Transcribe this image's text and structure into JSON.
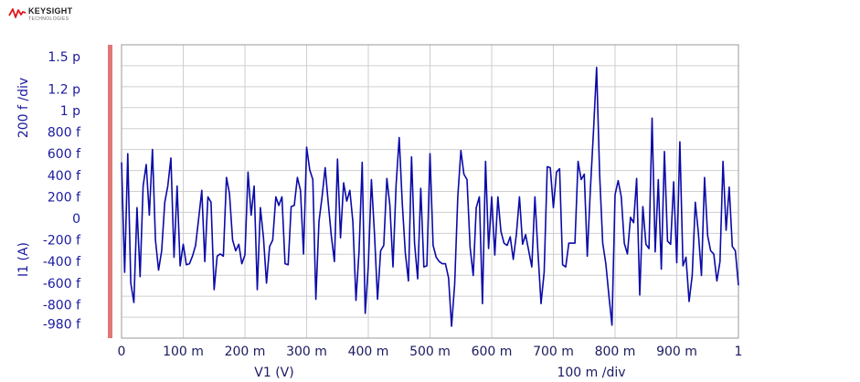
{
  "brand": {
    "name": "KEYSIGHT",
    "subtitle": "TECHNOLOGIES",
    "accent_color": "#e0161e"
  },
  "chart_data": {
    "type": "line",
    "title": "",
    "xlabel": "V1 (V)",
    "x_scale_label": "100 m /div",
    "ylabel": "I1 (A)",
    "y_scale_label": "200 f /div",
    "xlim": [
      0,
      1
    ],
    "ylim": [
      -1e-12,
      1.5e-12
    ],
    "grid": true,
    "line_color": "#0a0aa8",
    "marker_color": "#e07878",
    "x_ticks": [
      {
        "value": 0,
        "label": "0"
      },
      {
        "value": 0.1,
        "label": "100 m"
      },
      {
        "value": 0.2,
        "label": "200 m"
      },
      {
        "value": 0.3,
        "label": "300 m"
      },
      {
        "value": 0.4,
        "label": "400 m"
      },
      {
        "value": 0.5,
        "label": "500 m"
      },
      {
        "value": 0.6,
        "label": "600 m"
      },
      {
        "value": 0.7,
        "label": "700 m"
      },
      {
        "value": 0.8,
        "label": "800 m"
      },
      {
        "value": 0.9,
        "label": "900 m"
      },
      {
        "value": 1.0,
        "label": "1"
      }
    ],
    "y_ticks": [
      {
        "value": 1.5e-12,
        "label": "1.5 p"
      },
      {
        "value": 1.2e-12,
        "label": "1.2 p"
      },
      {
        "value": 1e-12,
        "label": "1 p"
      },
      {
        "value": 8e-13,
        "label": "800 f"
      },
      {
        "value": 6e-13,
        "label": "600 f"
      },
      {
        "value": 4e-13,
        "label": "400 f"
      },
      {
        "value": 2e-13,
        "label": "200 f"
      },
      {
        "value": 0,
        "label": "0"
      },
      {
        "value": -2e-13,
        "label": "-200 f"
      },
      {
        "value": -4e-13,
        "label": "-400 f"
      },
      {
        "value": -6e-13,
        "label": "-600 f"
      },
      {
        "value": -8e-13,
        "label": "-800 f"
      },
      {
        "value": -9.8e-13,
        "label": "-980 f"
      }
    ],
    "series": [
      {
        "x": [
          0,
          0.005,
          0.01,
          0.015,
          0.02,
          0.025,
          0.03,
          0.035,
          0.04,
          0.045,
          0.05,
          0.055,
          0.06,
          0.065,
          0.07,
          0.075,
          0.08,
          0.085,
          0.09,
          0.095,
          0.1,
          0.105,
          0.11,
          0.115,
          0.12,
          0.125,
          0.13,
          0.135,
          0.14,
          0.145,
          0.15,
          0.155,
          0.16,
          0.165,
          0.17,
          0.175,
          0.18,
          0.185,
          0.19,
          0.195,
          0.2,
          0.205,
          0.21,
          0.215,
          0.22,
          0.225,
          0.23,
          0.235,
          0.24,
          0.245,
          0.25,
          0.255,
          0.26,
          0.265,
          0.27,
          0.275,
          0.28,
          0.285,
          0.29,
          0.295,
          0.3,
          0.305,
          0.31,
          0.315,
          0.32,
          0.325,
          0.33,
          0.335,
          0.34,
          0.345,
          0.35,
          0.355,
          0.36,
          0.365,
          0.37,
          0.375,
          0.38,
          0.385,
          0.39,
          0.395,
          0.4,
          0.405,
          0.41,
          0.415,
          0.42,
          0.425,
          0.43,
          0.435,
          0.44,
          0.445,
          0.45,
          0.455,
          0.46,
          0.465,
          0.47,
          0.475,
          0.48,
          0.485,
          0.49,
          0.495,
          0.5,
          0.505,
          0.51,
          0.515,
          0.52,
          0.525,
          0.53,
          0.535,
          0.54,
          0.545,
          0.55,
          0.555,
          0.56,
          0.565,
          0.57,
          0.575,
          0.58,
          0.585,
          0.59,
          0.595,
          0.6,
          0.605,
          0.61,
          0.615,
          0.62,
          0.625,
          0.63,
          0.635,
          0.64,
          0.645,
          0.65,
          0.655,
          0.66,
          0.665,
          0.67,
          0.675,
          0.68,
          0.685,
          0.69,
          0.695,
          0.7,
          0.705,
          0.71,
          0.715,
          0.72,
          0.725,
          0.73,
          0.735,
          0.74,
          0.745,
          0.75,
          0.755,
          0.76,
          0.765,
          0.77,
          0.775,
          0.78,
          0.785,
          0.79,
          0.795,
          0.8,
          0.805,
          0.81,
          0.815,
          0.82,
          0.825,
          0.83,
          0.835,
          0.84,
          0.845,
          0.85,
          0.855,
          0.86,
          0.865,
          0.87,
          0.875,
          0.88,
          0.885,
          0.89,
          0.895,
          0.9,
          0.905,
          0.91,
          0.915,
          0.92,
          0.925,
          0.93,
          0.935,
          0.94,
          0.945,
          0.95,
          0.955,
          0.96,
          0.965,
          0.97,
          0.975,
          0.98,
          0.985,
          0.99,
          0.995,
          1.0
        ],
        "y": [
          5.2e-13,
          -5e-13,
          6e-13,
          -6e-13,
          -7.8e-13,
          1e-13,
          -5.4e-13,
          3e-13,
          5e-13,
          3e-14,
          6.4e-13,
          -2e-13,
          -4.8e-13,
          -3e-13,
          1.5e-13,
          3e-13,
          5.6e-13,
          -3.6e-13,
          3e-13,
          -4.4e-13,
          -2.4e-13,
          -4.3e-13,
          -4.2e-13,
          -3.5e-13,
          -2.5e-13,
          0.0,
          2.6e-13,
          -4e-13,
          2e-13,
          1.5e-13,
          -6.6e-13,
          -3.5e-13,
          -3.3e-13,
          -3.5e-13,
          3.8e-13,
          2.3e-13,
          -2e-13,
          -3e-13,
          -2.4e-13,
          -4.2e-13,
          -3.4e-13,
          4.3e-13,
          3e-14,
          3e-13,
          -6.6e-13,
          1e-13,
          -1.8e-13,
          -6e-13,
          -2.6e-13,
          -2e-13,
          2e-13,
          1.2e-13,
          2e-13,
          -4.2e-13,
          -4.3e-13,
          1.1e-13,
          1.2e-13,
          3.8e-13,
          2.6e-13,
          -3.3e-13,
          6.6e-13,
          4.5e-13,
          3.6e-13,
          -7.5e-13,
          -3e-14,
          2e-13,
          4.7e-13,
          1.5e-13,
          -1.6e-13,
          -4e-13,
          5.5e-13,
          -1.8e-13,
          3.3e-13,
          1.6e-13,
          2.6e-13,
          -3e-14,
          -7.6e-13,
          -3e-13,
          5.2e-13,
          -8.8e-13,
          -4.4e-13,
          3.6e-13,
          -1.5e-13,
          -7.5e-13,
          -3e-13,
          -2.5e-13,
          3.7e-13,
          1.2e-13,
          -4.5e-13,
          3.1e-13,
          7.5e-13,
          1.5e-13,
          -3.2e-13,
          -5.8e-13,
          5.7e-13,
          -2.3e-13,
          -5.6e-13,
          2.8e-13,
          -4.5e-13,
          -4.4e-13,
          6e-13,
          -2.5e-13,
          -3.6e-13,
          -4e-13,
          -4.2e-13,
          -4.2e-13,
          -5.5e-13,
          -1e-12,
          -6.1e-13,
          2e-13,
          6.3e-13,
          4.1e-13,
          3.6e-13,
          -2.7e-13,
          -5.3e-13,
          1e-13,
          2e-13,
          -7.9e-13,
          5.3e-13,
          -2.8e-13,
          2e-13,
          -3.4e-13,
          2e-13,
          -1.2e-13,
          -2.3e-13,
          -2.5e-13,
          -1.7e-13,
          -3.8e-13,
          -1.5e-13,
          2e-13,
          -2.4e-13,
          -1.5e-13,
          -3e-13,
          -4.5e-13,
          2e-13,
          -3.1e-13,
          -7.9e-13,
          -5e-13,
          4.8e-13,
          4.7e-13,
          1e-13,
          4.3e-13,
          4.6e-13,
          -4.3e-13,
          -4.5e-13,
          -2.3e-13,
          -2.3e-13,
          -2.3e-13,
          5.3e-13,
          3.6e-13,
          4.1e-13,
          -3.5e-13,
          2.7e-13,
          8.1e-13,
          1.4e-12,
          4.1e-13,
          -2.3e-13,
          -4.2e-13,
          -7.2e-13,
          -9.9e-13,
          2.2e-13,
          3.5e-13,
          2e-13,
          -2.3e-13,
          -3.3e-13,
          1e-14,
          -4e-14,
          3.7e-13,
          -7.1e-13,
          1.1e-13,
          -2.4e-13,
          -2.8e-13,
          9.3e-13,
          -3.1e-13,
          3.6e-13,
          -4.7e-13,
          6.2e-13,
          -2.1e-13,
          -2.4e-13,
          3.4e-13,
          -4.1e-13,
          7.1e-13,
          -4.4e-13,
          -3.6e-13,
          -7.7e-13,
          -5.3e-13,
          1.5e-13,
          -1.3e-13,
          -5.3e-13,
          3.8e-13,
          -1.6e-13,
          -3e-13,
          -3.3e-13,
          -5.8e-13,
          -4e-13,
          5.3e-13,
          -1.1e-13,
          2.9e-13,
          -2.6e-13,
          -3e-13,
          -6.2e-13
        ]
      }
    ]
  }
}
